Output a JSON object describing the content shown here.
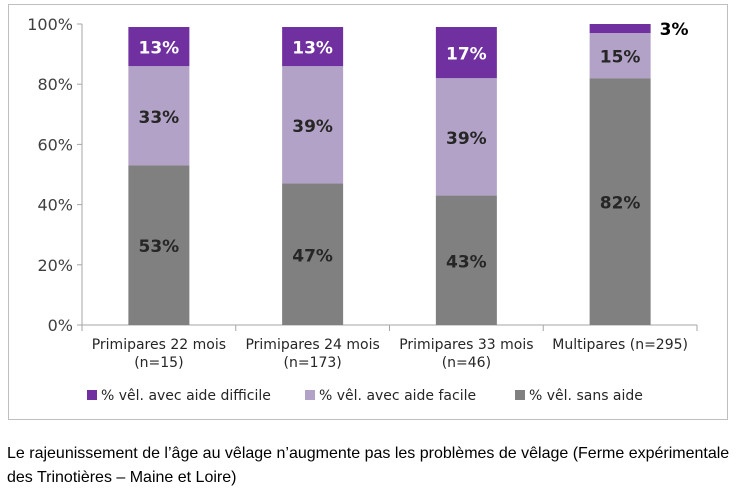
{
  "chart_data": {
    "type": "bar",
    "stacked": true,
    "percent": true,
    "categories": [
      [
        "Primipares 22 mois",
        "(n=15)"
      ],
      [
        "Primipares 24 mois",
        "(n=173)"
      ],
      [
        "Primipares 33 mois",
        "(n=46)"
      ],
      [
        "Multipares (n=295)"
      ]
    ],
    "series": [
      {
        "name": "% vêl. sans aide",
        "color": "#808080",
        "values": [
          53,
          47,
          43,
          82
        ],
        "labels": [
          "53%",
          "47%",
          "43%",
          "82%"
        ]
      },
      {
        "name": "% vêl. avec aide facile",
        "color": "#b3a2c7",
        "values": [
          33,
          39,
          39,
          15
        ],
        "labels": [
          "33%",
          "39%",
          "39%",
          "15%"
        ]
      },
      {
        "name": "% vêl. avec aide difficile",
        "color": "#7030a0",
        "values": [
          13,
          13,
          17,
          3
        ],
        "labels": [
          "13%",
          "13%",
          "17%",
          "3%"
        ]
      }
    ],
    "ylim": [
      0,
      100
    ],
    "yticks": [
      "0%",
      "20%",
      "40%",
      "60%",
      "80%",
      "100%"
    ],
    "grid": false,
    "legend_position": "bottom",
    "legend_order": [
      2,
      1,
      0
    ]
  },
  "caption": "Le rajeunissement  de l’âge au vêlage n’augmente  pas les problèmes de vêlage (Ferme expérimentale  des Trinotières – Maine et Loire)"
}
